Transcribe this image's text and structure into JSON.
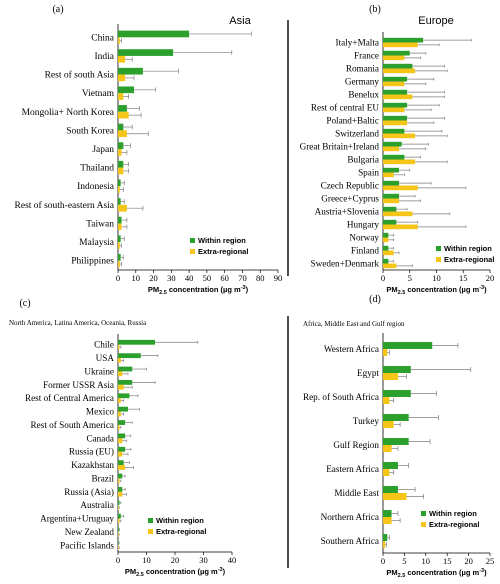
{
  "legend_labels": {
    "within": "Within region",
    "extra": "Extra-regional"
  },
  "colors": {
    "within": "#2ca02c",
    "extra": "#f5c518",
    "error": "#7f7f7f",
    "divider": "#000000"
  },
  "chart_data": [
    {
      "type": "bar",
      "orientation": "horizontal",
      "panel_label": "(a)",
      "title": "Asia",
      "xlabel_main": "PM",
      "xlabel_sub": "2.5",
      "xlabel_rest": " concentration (µg m",
      "xlabel_sup": "-3",
      "xlabel_end": ")",
      "xlim": [
        0,
        90
      ],
      "xticks": [
        0,
        10,
        20,
        30,
        40,
        50,
        60,
        70,
        80,
        90
      ],
      "categories": [
        "China",
        "India",
        "Rest of south Asia",
        "Vietnam",
        "Mongolia+ North Korea",
        "South Korea",
        "Japan",
        "Thailand",
        "Indonesia",
        "Rest of south-eastern Asia",
        "Taiwan",
        "Malaysia",
        "Philippines"
      ],
      "series": [
        {
          "name": "Within region",
          "values": [
            40,
            31,
            14,
            9,
            5,
            3,
            3,
            3,
            1.5,
            1.5,
            2,
            1.5,
            1.5
          ],
          "errors": [
            35,
            33,
            20,
            12,
            7,
            5,
            4,
            3,
            2,
            2,
            3,
            2,
            1.5
          ]
        },
        {
          "name": "Extra-regional",
          "values": [
            1,
            4,
            4,
            3,
            6,
            5,
            2,
            3,
            1,
            5,
            2,
            1,
            1
          ],
          "errors": [
            1,
            4,
            5,
            3,
            7,
            12,
            3,
            3,
            2,
            9,
            3,
            1,
            1
          ]
        }
      ],
      "legend_position": "bottom-right"
    },
    {
      "type": "bar",
      "orientation": "horizontal",
      "panel_label": "(b)",
      "title": "Europe",
      "xlabel_main": "PM",
      "xlabel_sub": "2.5",
      "xlabel_rest": " concentration (µg m",
      "xlabel_sup": "-3",
      "xlabel_end": ")",
      "xlim": [
        0,
        20
      ],
      "xticks": [
        0,
        5,
        10,
        15,
        20
      ],
      "categories": [
        "Italy+Malta",
        "France",
        "Romania",
        "Germany",
        "Benelux",
        "Rest of central EU",
        "Poland+Baltic",
        "Switzerland",
        "Great Britain+Ireland",
        "Bulgaria",
        "Spain",
        "Czech Republic",
        "Greece+Cyprus",
        "Austria+Slovenia",
        "Hungary",
        "Norway",
        "Finland",
        "Sweden+Denmark"
      ],
      "series": [
        {
          "name": "Within region",
          "values": [
            7.5,
            5,
            5.5,
            4.5,
            4.5,
            4.5,
            4.5,
            4,
            3.5,
            4,
            3,
            3,
            3,
            2.5,
            2.5,
            1,
            1,
            1
          ],
          "errors": [
            9,
            3,
            6,
            5,
            7,
            6,
            7,
            7,
            5,
            3,
            2,
            6,
            3,
            2,
            4,
            1,
            1,
            1
          ]
        },
        {
          "name": "Extra-regional",
          "values": [
            6.5,
            4,
            6,
            4,
            5.5,
            4,
            4.5,
            6,
            3,
            6,
            2,
            6.5,
            3,
            5.5,
            6.5,
            1,
            2,
            2.5
          ],
          "errors": [
            4,
            3,
            6,
            4,
            6,
            5,
            5,
            6,
            5,
            6,
            2,
            9,
            4,
            7,
            9,
            1,
            1,
            3
          ]
        }
      ],
      "legend_position": "bottom-right"
    },
    {
      "type": "bar",
      "orientation": "horizontal",
      "panel_label": "(c)",
      "subtitle": "North America, Latina America, Oceania, Russia",
      "xlabel_main": "PM",
      "xlabel_sub": "2.5",
      "xlabel_rest": " concentration (µg m",
      "xlabel_sup": "-3",
      "xlabel_end": ")",
      "xlim": [
        0,
        40
      ],
      "xticks": [
        0,
        10,
        20,
        30,
        40
      ],
      "categories": [
        "Chile",
        "USA",
        "Ukraine",
        "Former USSR Asia",
        "Rest of Central America",
        "Mexico",
        "Rest of South America",
        "Canada",
        "Russia (EU)",
        "Kazakhstan",
        "Brazil",
        "Russia (Asia)",
        "Australia",
        "Argentina+Uruguay",
        "New Zealand",
        "Pacific Islands"
      ],
      "series": [
        {
          "name": "Within region",
          "values": [
            13,
            8,
            5,
            5,
            4,
            3.5,
            2.5,
            2.5,
            2.5,
            2,
            1.5,
            1.5,
            0.5,
            1,
            0.3,
            0.2
          ],
          "errors": [
            15,
            6,
            5,
            8,
            3,
            4,
            2.5,
            2,
            2,
            2,
            1,
            1,
            0.5,
            1,
            0.3,
            0.2
          ]
        },
        {
          "name": "Extra-regional",
          "values": [
            0.5,
            1,
            1.5,
            2,
            1,
            1,
            0.5,
            1.5,
            1.5,
            2.5,
            0.5,
            1.5,
            0.2,
            0.5,
            0.2,
            0.2
          ],
          "errors": [
            0.5,
            1,
            2,
            3,
            1,
            1,
            0.5,
            1.5,
            2,
            3,
            0.5,
            1.5,
            0.2,
            0.5,
            0.2,
            0.2
          ]
        }
      ],
      "legend_position": "bottom-right"
    },
    {
      "type": "bar",
      "orientation": "horizontal",
      "panel_label": "(d)",
      "subtitle": "Africa, Middle East and Gulf region",
      "xlabel_main": "PM",
      "xlabel_sub": "2.5",
      "xlabel_rest": " concentration (µg m",
      "xlabel_sup": "-3",
      "xlabel_end": ")",
      "xlim": [
        0,
        25
      ],
      "xticks": [
        0,
        5,
        10,
        15,
        20,
        25
      ],
      "categories": [
        "Western Africa",
        "Egypt",
        "Rep. of South Africa",
        "Turkey",
        "Gulf Region",
        "Eastern Africa",
        "Middle East",
        "Northern Africa",
        "Southern Africa"
      ],
      "series": [
        {
          "name": "Within region",
          "values": [
            11.5,
            6.5,
            6.5,
            6,
            6,
            3.5,
            3.5,
            2,
            1
          ],
          "errors": [
            6,
            14,
            6,
            7,
            5,
            2.5,
            4,
            1.5,
            0.5
          ]
        },
        {
          "name": "Extra-regional",
          "values": [
            1,
            3.5,
            1.5,
            2.5,
            2,
            1.5,
            5.5,
            2,
            0.5
          ],
          "errors": [
            0.5,
            2,
            1,
            1.5,
            1.5,
            1,
            4,
            2,
            0.3
          ]
        }
      ],
      "legend_position": "bottom-right"
    }
  ]
}
